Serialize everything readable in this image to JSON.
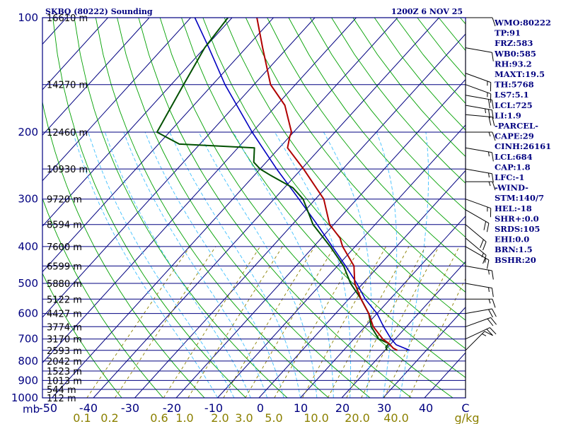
{
  "header": {
    "station": "SKBQ (80222) Sounding",
    "time": "1200Z  6 NOV 25"
  },
  "chart_data": {
    "type": "skew-t",
    "title": "SKBQ (80222) Sounding",
    "valid_time": "1200Z  6 NOV 25",
    "p_top": 100,
    "p_bottom": 1000,
    "pressure_ticks": [
      100,
      200,
      300,
      400,
      500,
      600,
      700,
      800,
      900,
      1000
    ],
    "pressure_unit_label": "mb",
    "height_labels": [
      {
        "p": 100,
        "label": "16610 m"
      },
      {
        "p": 150,
        "label": "14270 m"
      },
      {
        "p": 200,
        "label": "12460 m"
      },
      {
        "p": 250,
        "label": "10930 m"
      },
      {
        "p": 300,
        "label": "9720 m"
      },
      {
        "p": 350,
        "label": "8594 m"
      },
      {
        "p": 400,
        "label": "7600 m"
      },
      {
        "p": 450,
        "label": "6599 m"
      },
      {
        "p": 500,
        "label": "5880 m"
      },
      {
        "p": 550,
        "label": "5122 m"
      },
      {
        "p": 600,
        "label": "4427 m"
      },
      {
        "p": 650,
        "label": "3774 m"
      },
      {
        "p": 700,
        "label": "3170 m"
      },
      {
        "p": 750,
        "label": "2593 m"
      },
      {
        "p": 800,
        "label": "2042 m"
      },
      {
        "p": 850,
        "label": "1523 m"
      },
      {
        "p": 900,
        "label": "1013 m"
      },
      {
        "p": 950,
        "label": "544 m"
      },
      {
        "p": 1000,
        "label": "112 m"
      }
    ],
    "temperature_ticks": [
      "-50",
      "-40",
      "-30",
      "-20",
      "-10",
      "0",
      "10",
      "20",
      "30",
      "40",
      "C"
    ],
    "mixing_ratio_ticks": [
      "0.1",
      "0.2",
      "0.6",
      "1.0",
      "2.0",
      "3.0",
      "5.0",
      "10.0",
      "20.0",
      "40.0",
      "g/kg"
    ],
    "temperature_profile": [
      {
        "p": 750,
        "t": 23
      },
      {
        "p": 740,
        "t": 21.5
      },
      {
        "p": 720,
        "t": 19.5
      },
      {
        "p": 700,
        "t": 17
      },
      {
        "p": 650,
        "t": 12
      },
      {
        "p": 600,
        "t": 8
      },
      {
        "p": 550,
        "t": 3
      },
      {
        "p": 500,
        "t": -2
      },
      {
        "p": 450,
        "t": -6
      },
      {
        "p": 400,
        "t": -13
      },
      {
        "p": 380,
        "t": -15.5
      },
      {
        "p": 350,
        "t": -21
      },
      {
        "p": 300,
        "t": -28
      },
      {
        "p": 250,
        "t": -39.5
      },
      {
        "p": 220,
        "t": -48
      },
      {
        "p": 205,
        "t": -50
      },
      {
        "p": 200,
        "t": -50.5
      },
      {
        "p": 170,
        "t": -58
      },
      {
        "p": 150,
        "t": -66
      },
      {
        "p": 120,
        "t": -76
      },
      {
        "p": 100,
        "t": -84
      }
    ],
    "dewpoint_profile": [
      {
        "p": 750,
        "t": 20.5
      },
      {
        "p": 735,
        "t": 19.5
      },
      {
        "p": 720,
        "t": 19.5
      },
      {
        "p": 700,
        "t": 16
      },
      {
        "p": 650,
        "t": 11.5
      },
      {
        "p": 600,
        "t": 8
      },
      {
        "p": 550,
        "t": 3
      },
      {
        "p": 500,
        "t": -3
      },
      {
        "p": 450,
        "t": -8.5
      },
      {
        "p": 400,
        "t": -16
      },
      {
        "p": 350,
        "t": -25
      },
      {
        "p": 300,
        "t": -33
      },
      {
        "p": 280,
        "t": -38
      },
      {
        "p": 260,
        "t": -46
      },
      {
        "p": 250,
        "t": -50
      },
      {
        "p": 240,
        "t": -53
      },
      {
        "p": 220,
        "t": -56
      },
      {
        "p": 215,
        "t": -75
      },
      {
        "p": 200,
        "t": -83
      },
      {
        "p": 150,
        "t": -87
      },
      {
        "p": 120,
        "t": -90
      },
      {
        "p": 100,
        "t": -91
      }
    ],
    "parcel_profile": [
      {
        "p": 750,
        "t": 26
      },
      {
        "p": 725,
        "t": 21.5
      },
      {
        "p": 700,
        "t": 19
      },
      {
        "p": 650,
        "t": 14.5
      },
      {
        "p": 600,
        "t": 10
      },
      {
        "p": 550,
        "t": 4
      },
      {
        "p": 500,
        "t": -1.5
      },
      {
        "p": 450,
        "t": -8
      },
      {
        "p": 400,
        "t": -15.5
      },
      {
        "p": 350,
        "t": -24
      },
      {
        "p": 300,
        "t": -34
      },
      {
        "p": 250,
        "t": -46
      },
      {
        "p": 200,
        "t": -60
      },
      {
        "p": 150,
        "t": -77
      },
      {
        "p": 120,
        "t": -89
      },
      {
        "p": 100,
        "t": -99
      }
    ],
    "wind_barbs": [
      {
        "p": 100,
        "dir": 90,
        "spd": 10
      },
      {
        "p": 120,
        "dir": 100,
        "spd": 10
      },
      {
        "p": 140,
        "dir": 110,
        "spd": 15
      },
      {
        "p": 150,
        "dir": 110,
        "spd": 15
      },
      {
        "p": 160,
        "dir": 100,
        "spd": 20
      },
      {
        "p": 170,
        "dir": 100,
        "spd": 25
      },
      {
        "p": 180,
        "dir": 95,
        "spd": 20
      },
      {
        "p": 200,
        "dir": 90,
        "spd": 15
      },
      {
        "p": 220,
        "dir": 100,
        "spd": 15
      },
      {
        "p": 250,
        "dir": 100,
        "spd": 15
      },
      {
        "p": 270,
        "dir": 90,
        "spd": 15
      },
      {
        "p": 300,
        "dir": 110,
        "spd": 15
      },
      {
        "p": 320,
        "dir": 120,
        "spd": 20
      },
      {
        "p": 350,
        "dir": 130,
        "spd": 20
      },
      {
        "p": 380,
        "dir": 130,
        "spd": 15
      },
      {
        "p": 400,
        "dir": 120,
        "spd": 15
      },
      {
        "p": 450,
        "dir": 100,
        "spd": 15
      },
      {
        "p": 500,
        "dir": 100,
        "spd": 15
      },
      {
        "p": 550,
        "dir": 90,
        "spd": 15
      },
      {
        "p": 600,
        "dir": 80,
        "spd": 20
      },
      {
        "p": 650,
        "dir": 70,
        "spd": 20
      },
      {
        "p": 700,
        "dir": 65,
        "spd": 20
      },
      {
        "p": 750,
        "dir": 45,
        "spd": 15
      }
    ]
  },
  "indices": [
    "WMO:80222",
    "TP:91",
    "FRZ:583",
    "WB0:585",
    "RH:93.2",
    "MAXT:19.5",
    "TH:5768",
    "LS7:5.1",
    "LCL:725",
    "LI:1.9",
    "-PARCEL-",
    "CAPE:29",
    "CINH:26161",
    "LCL:684",
    "CAP:1.8",
    "LFC:-1",
    "-WIND-",
    "STM:140/7",
    "HEL:-18",
    "SHR+:0.0",
    "SRDS:105",
    "EHI:0.0",
    "BRN:1.5",
    "BSHR:20"
  ],
  "colors": {
    "frame": "#000080",
    "isobar": "#000080",
    "isotherm": "#000080",
    "dry_adiabat": "#00a000",
    "moist_adiabat": "#40c0ff",
    "mixing_ratio": "#8b8000",
    "temperature": "#b00000",
    "dewpoint": "#005000",
    "parcel": "#0000c0",
    "barb": "#000000",
    "index_text": "#000080"
  }
}
